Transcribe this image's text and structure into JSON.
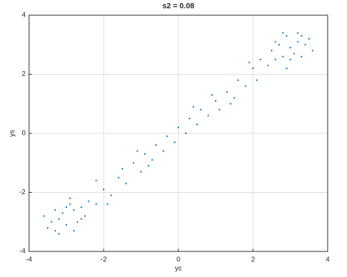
{
  "chart_data": {
    "type": "scatter",
    "title": "s2 = 0.08",
    "xlabel": "yc",
    "ylabel": "ys",
    "color": "#0072bd",
    "grid": true,
    "xlim": [
      -4,
      4
    ],
    "ylim": [
      -4,
      4
    ],
    "xticks": [
      -4,
      -2,
      0,
      2,
      4
    ],
    "yticks": [
      -4,
      -2,
      0,
      2,
      4
    ],
    "x": [
      -3.2,
      -2.8,
      -3.0,
      -2.6,
      -3.4,
      -2.9,
      -3.1,
      -2.7,
      -3.3,
      -2.5,
      -3.5,
      -2.8,
      -3.0,
      -2.4,
      -3.6,
      -3.2,
      -2.6,
      -2.9,
      -3.3,
      -2.2,
      -2.0,
      -1.8,
      -1.6,
      -1.4,
      -1.5,
      -1.2,
      -1.0,
      -0.9,
      -0.7,
      -0.6,
      -0.4,
      -0.3,
      -0.1,
      0.0,
      0.2,
      0.3,
      0.5,
      0.6,
      0.8,
      1.0,
      1.1,
      1.3,
      1.5,
      1.6,
      1.8,
      2.0,
      2.1,
      -2.2,
      -1.9,
      -1.1,
      0.9,
      1.9,
      -0.8,
      0.4,
      1.4,
      3.0,
      2.8,
      3.2,
      2.6,
      3.4,
      2.9,
      3.1,
      2.7,
      3.3,
      2.5,
      3.5,
      2.8,
      3.0,
      2.4,
      3.6,
      3.2,
      2.6,
      2.9,
      3.3,
      2.2
    ],
    "values": [
      -2.9,
      -2.6,
      -3.1,
      -2.5,
      -3.0,
      -2.4,
      -2.7,
      -3.0,
      -2.6,
      -2.8,
      -3.2,
      -3.3,
      -2.5,
      -2.3,
      -2.8,
      -3.4,
      -2.9,
      -2.2,
      -3.3,
      -2.4,
      -1.9,
      -2.1,
      -1.5,
      -1.7,
      -1.2,
      -1.0,
      -1.3,
      -0.7,
      -0.9,
      -0.4,
      -0.6,
      -0.1,
      -0.3,
      0.2,
      0.0,
      0.5,
      0.3,
      0.8,
      0.6,
      1.1,
      0.8,
      1.4,
      1.2,
      1.8,
      1.6,
      2.2,
      1.8,
      -1.6,
      -2.4,
      -0.6,
      1.3,
      2.4,
      -1.1,
      0.9,
      1.0,
      2.9,
      2.6,
      3.1,
      2.5,
      3.0,
      3.3,
      2.7,
      3.0,
      2.6,
      2.8,
      3.2,
      3.4,
      2.5,
      2.3,
      2.8,
      3.4,
      3.1,
      2.2,
      3.3,
      2.5
    ]
  }
}
